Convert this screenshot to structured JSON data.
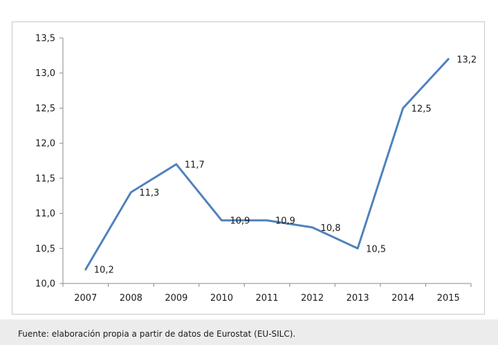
{
  "chart_data": {
    "type": "line",
    "title": "",
    "xlabel": "",
    "ylabel": "",
    "categories": [
      "2007",
      "2008",
      "2009",
      "2010",
      "2011",
      "2012",
      "2013",
      "2014",
      "2015"
    ],
    "series": [
      {
        "values": [
          10.2,
          11.3,
          11.7,
          10.9,
          10.9,
          10.8,
          10.5,
          12.5,
          13.2
        ],
        "data_labels": [
          "10,2",
          "11,3",
          "11,7",
          "10,9",
          "10,9",
          "10,8",
          "10,5",
          "12,5",
          "13,2"
        ],
        "color": "#4f81bd"
      }
    ],
    "ylim": [
      10.0,
      13.5
    ],
    "y_ticks": [
      10.0,
      10.5,
      11.0,
      11.5,
      12.0,
      12.5,
      13.0,
      13.5
    ],
    "y_tick_labels": [
      "10,0",
      "10,5",
      "11,0",
      "11,5",
      "12,0",
      "12,5",
      "13,0",
      "13,5"
    ],
    "grid": false,
    "legend": "none"
  },
  "footer": {
    "source_text": "Fuente: elaboración propia a partir de datos de Eurostat (EU-SILC)."
  }
}
